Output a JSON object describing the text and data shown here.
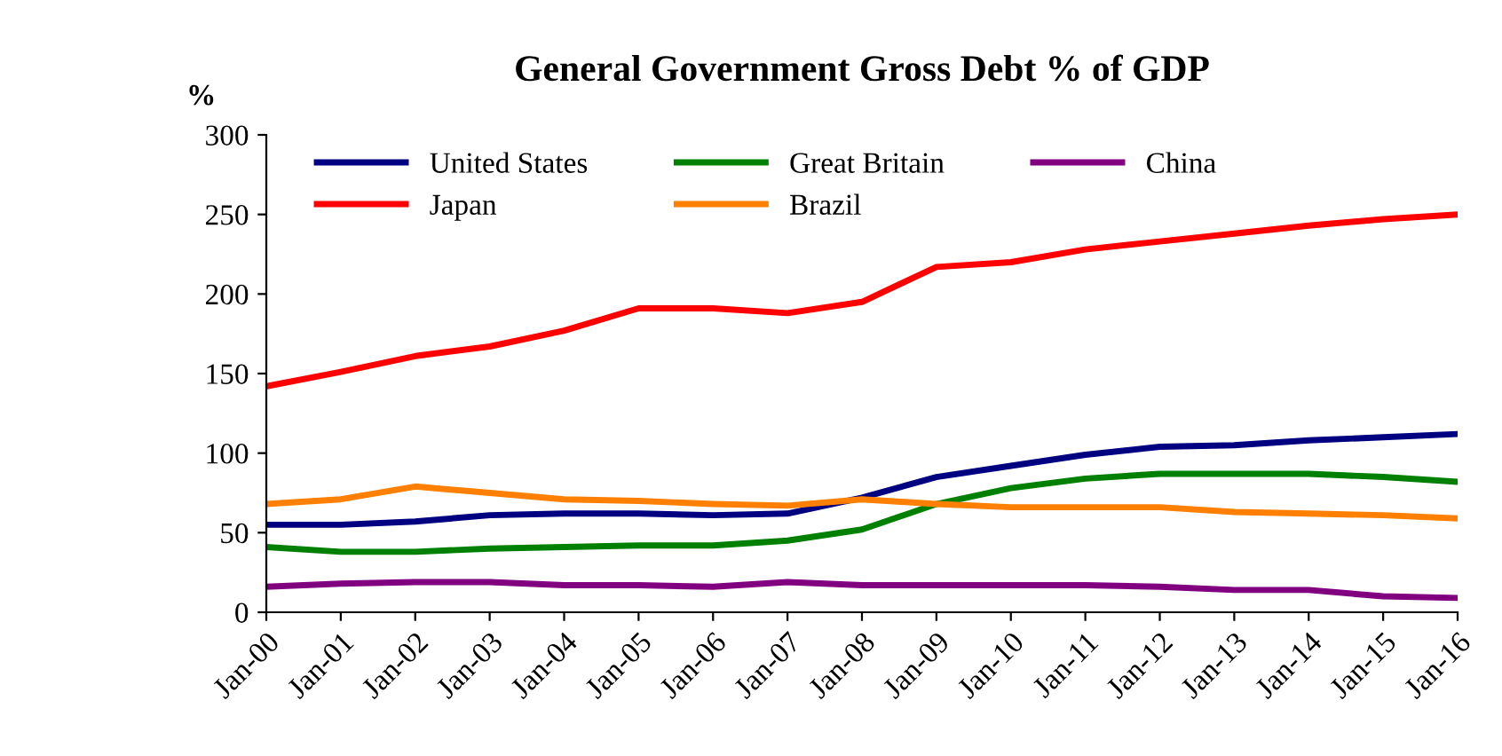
{
  "chart_data": {
    "type": "line",
    "title": "General Government Gross Debt % of GDP",
    "ylabel": "%",
    "categories": [
      "Jan-00",
      "Jan-01",
      "Jan-02",
      "Jan-03",
      "Jan-04",
      "Jan-05",
      "Jan-06",
      "Jan-07",
      "Jan-08",
      "Jan-09",
      "Jan-10",
      "Jan-11",
      "Jan-12",
      "Jan-13",
      "Jan-14",
      "Jan-15",
      "Jan-16"
    ],
    "series": [
      {
        "name": "United States",
        "color": "#000080",
        "values": [
          55,
          55,
          57,
          61,
          62,
          62,
          61,
          62,
          72,
          85,
          92,
          99,
          104,
          105,
          108,
          110,
          112
        ]
      },
      {
        "name": "Japan",
        "color": "#ff0000",
        "values": [
          142,
          151,
          161,
          167,
          177,
          191,
          191,
          188,
          195,
          217,
          220,
          228,
          233,
          238,
          243,
          247,
          250
        ]
      },
      {
        "name": "Great Britain",
        "color": "#008000",
        "values": [
          41,
          38,
          38,
          40,
          41,
          42,
          42,
          45,
          52,
          68,
          78,
          84,
          87,
          87,
          87,
          85,
          82
        ]
      },
      {
        "name": "Brazil",
        "color": "#ff8000",
        "values": [
          68,
          71,
          79,
          75,
          71,
          70,
          68,
          67,
          71,
          68,
          66,
          66,
          66,
          63,
          62,
          61,
          59
        ]
      },
      {
        "name": "China",
        "color": "#800080",
        "values": [
          16,
          18,
          19,
          19,
          17,
          17,
          16,
          19,
          17,
          17,
          17,
          17,
          16,
          14,
          14,
          10,
          9
        ]
      }
    ],
    "ylim": [
      0,
      300
    ],
    "yticks": [
      0,
      50,
      100,
      150,
      200,
      250,
      300
    ],
    "grid": false,
    "legend": "top",
    "marker": "none",
    "line_style": "solid"
  }
}
